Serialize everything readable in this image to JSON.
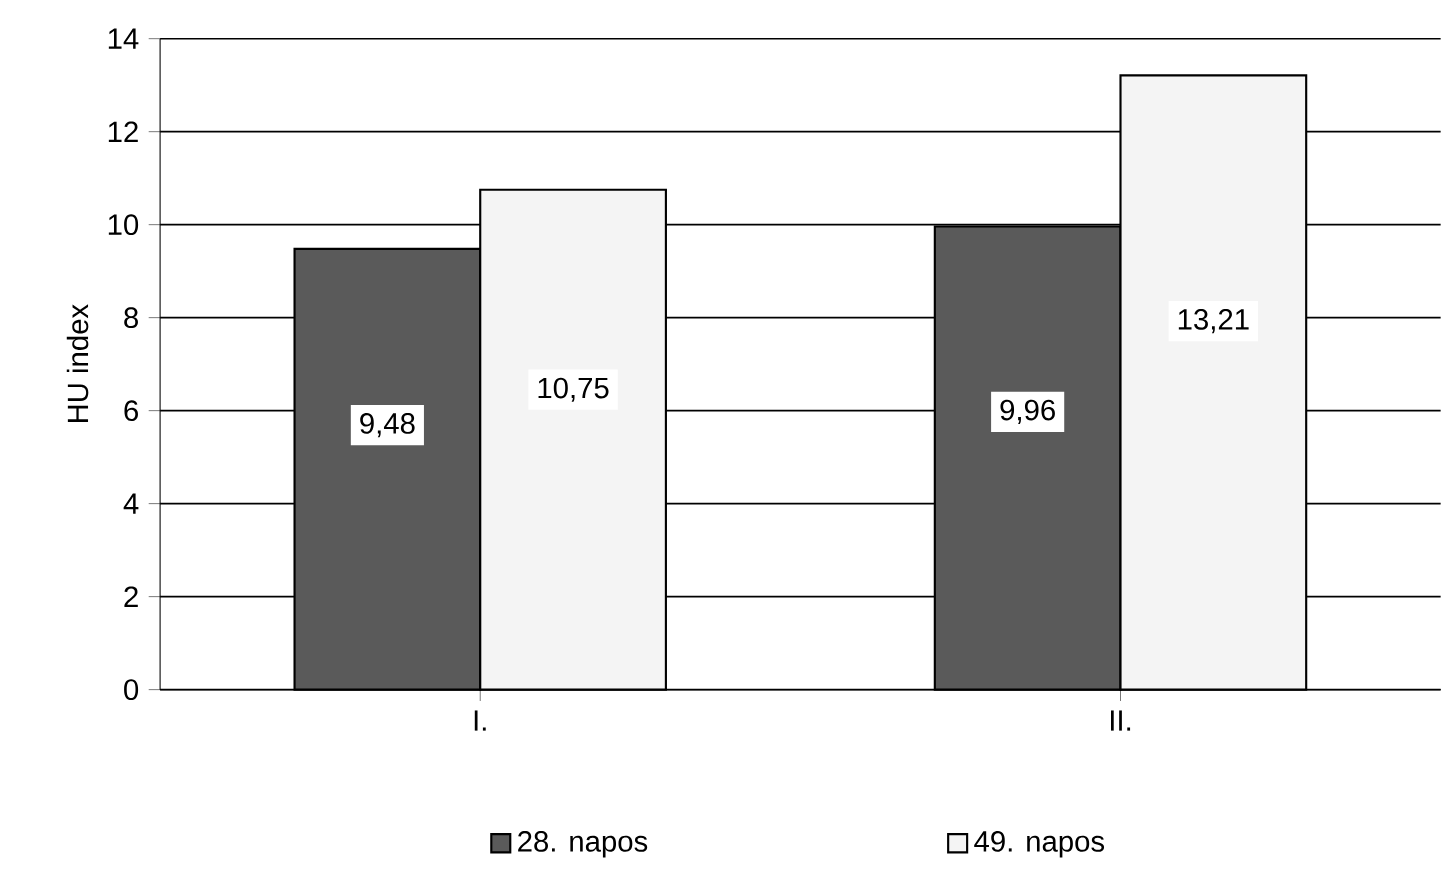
{
  "chart_data": {
    "type": "bar",
    "ylabel": "HU index",
    "categories": [
      "I.",
      "II."
    ],
    "series": [
      {
        "name": "28. napos",
        "color": "#5a5a5a",
        "values": [
          9.48,
          9.96
        ],
        "value_labels": [
          "9,48",
          "9,96"
        ]
      },
      {
        "name": "49. napos",
        "color": "#f4f4f4",
        "values": [
          10.75,
          13.21
        ],
        "value_labels": [
          "10,75",
          "13,21"
        ]
      }
    ],
    "ylim": [
      0,
      14
    ],
    "yticks": [
      0,
      2,
      4,
      6,
      8,
      10,
      12,
      14
    ],
    "grid": "y",
    "legend": "bottom"
  }
}
